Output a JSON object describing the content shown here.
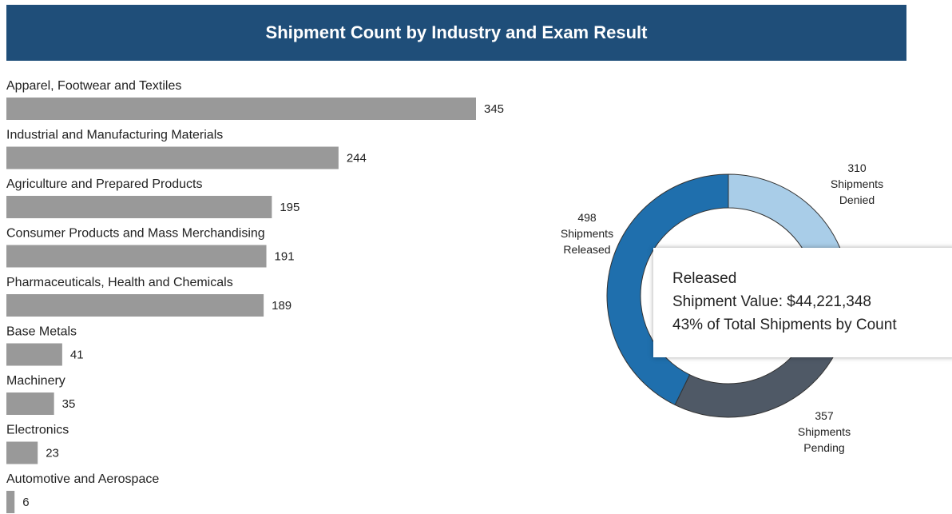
{
  "chart_data": [
    {
      "type": "hbar",
      "title": "Shipment Count by Industry and Exam Result",
      "color": "#999999",
      "categories": [
        "Apparel, Footwear and Textiles",
        "Industrial and Manufacturing Materials",
        "Agriculture and Prepared Products",
        "Consumer Products and Mass Merchandising",
        "Pharmaceuticals, Health and Chemicals",
        "Base Metals",
        "Machinery",
        "Electronics",
        "Automotive and Aerospace"
      ],
      "values": [
        345,
        244,
        195,
        191,
        189,
        41,
        35,
        23,
        6
      ]
    },
    {
      "type": "donut",
      "categories": [
        "Shipments Denied",
        "Shipments Pending",
        "Shipments Released"
      ],
      "values": [
        310,
        357,
        498
      ],
      "colors": [
        "#a9cde8",
        "#4f5966",
        "#1f6fad"
      ],
      "tooltip": {
        "title": "Released",
        "lines": [
          "Shipment Value: $44,221,348",
          "43% of Total Shipments by Count"
        ]
      }
    }
  ]
}
